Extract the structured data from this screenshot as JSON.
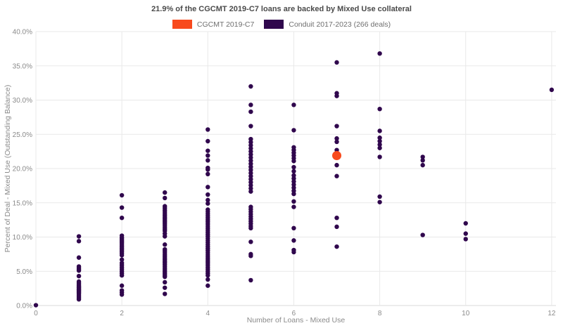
{
  "title": "21.9% of the CGCMT 2019-C7 loans are backed by Mixed Use collateral",
  "legend": {
    "items": [
      {
        "label": "CGCMT 2019-C7",
        "color": "#f84a1d"
      },
      {
        "label": "Conduit 2017-2023 (266 deals)",
        "color": "#30074d"
      }
    ]
  },
  "colors": {
    "gridline": "#e9e9e9",
    "axis_line": "#d9d9d9",
    "tick_text": "#8a8a8a",
    "axis_title_text": "#8a8a8a"
  },
  "chart_data": {
    "type": "scatter",
    "title": "21.9% of the CGCMT 2019-C7 loans are backed by Mixed Use collateral",
    "xlabel": "Number of Loans - Mixed Use",
    "ylabel": "Percent of Deal - Mixed Use (Outstanding Balance)",
    "xlim": [
      0,
      12.1
    ],
    "ylim": [
      0,
      40
    ],
    "grid": true,
    "legend_position": "top",
    "x_ticks": [
      {
        "v": 0,
        "label": "0"
      },
      {
        "v": 2,
        "label": "2"
      },
      {
        "v": 4,
        "label": "4"
      },
      {
        "v": 6,
        "label": "6"
      },
      {
        "v": 8,
        "label": "8"
      },
      {
        "v": 10,
        "label": "10"
      },
      {
        "v": 12,
        "label": "12"
      }
    ],
    "y_ticks": [
      {
        "v": 0,
        "label": "0.0%"
      },
      {
        "v": 5,
        "label": "5.0%"
      },
      {
        "v": 10,
        "label": "10.0%"
      },
      {
        "v": 15,
        "label": "15.0%"
      },
      {
        "v": 20,
        "label": "20.0%"
      },
      {
        "v": 25,
        "label": "25.0%"
      },
      {
        "v": 30,
        "label": "30.0%"
      },
      {
        "v": 35,
        "label": "35.0%"
      },
      {
        "v": 40,
        "label": "40.0%"
      }
    ],
    "series": [
      {
        "name": "Conduit 2017-2023 (266 deals)",
        "color": "#30074d",
        "marker_radius": 3.2,
        "points": [
          [
            0,
            0.05
          ],
          [
            1,
            10.1
          ],
          [
            1,
            9.4
          ],
          [
            1,
            7.0
          ],
          [
            1,
            5.7
          ],
          [
            1,
            5.5
          ],
          [
            1,
            5.3
          ],
          [
            1,
            5.1
          ],
          [
            1,
            4.3
          ],
          [
            1,
            3.5
          ],
          [
            1,
            3.3
          ],
          [
            1,
            3.1
          ],
          [
            1,
            2.9
          ],
          [
            1,
            2.75
          ],
          [
            1,
            2.6
          ],
          [
            1,
            2.45
          ],
          [
            1,
            2.3
          ],
          [
            1,
            2.15
          ],
          [
            1,
            2.0
          ],
          [
            1,
            1.85
          ],
          [
            1,
            1.7
          ],
          [
            1,
            1.5
          ],
          [
            1,
            1.3
          ],
          [
            1,
            1.1
          ],
          [
            1,
            0.9
          ],
          [
            2,
            16.1
          ],
          [
            2,
            14.3
          ],
          [
            2,
            12.8
          ],
          [
            2,
            10.2
          ],
          [
            2,
            9.9
          ],
          [
            2,
            9.7
          ],
          [
            2,
            9.5
          ],
          [
            2,
            9.3
          ],
          [
            2,
            9.1
          ],
          [
            2,
            8.85
          ],
          [
            2,
            8.6
          ],
          [
            2,
            8.35
          ],
          [
            2,
            8.1
          ],
          [
            2,
            7.85
          ],
          [
            2,
            7.6
          ],
          [
            2,
            7.35
          ],
          [
            2,
            6.7
          ],
          [
            2,
            6.2
          ],
          [
            2,
            5.9
          ],
          [
            2,
            5.6
          ],
          [
            2,
            5.3
          ],
          [
            2,
            5.0
          ],
          [
            2,
            4.7
          ],
          [
            2,
            4.4
          ],
          [
            2,
            2.9
          ],
          [
            2,
            2.2
          ],
          [
            2,
            1.9
          ],
          [
            2,
            1.6
          ],
          [
            3,
            16.5
          ],
          [
            3,
            15.7
          ],
          [
            3,
            14.5
          ],
          [
            3,
            14.2
          ],
          [
            3,
            13.9
          ],
          [
            3,
            13.65
          ],
          [
            3,
            13.4
          ],
          [
            3,
            13.15
          ],
          [
            3,
            12.9
          ],
          [
            3,
            12.65
          ],
          [
            3,
            12.4
          ],
          [
            3,
            12.15
          ],
          [
            3,
            11.9
          ],
          [
            3,
            11.65
          ],
          [
            3,
            11.4
          ],
          [
            3,
            11.15
          ],
          [
            3,
            10.9
          ],
          [
            3,
            10.5
          ],
          [
            3,
            10.1
          ],
          [
            3,
            8.9
          ],
          [
            3,
            8.2
          ],
          [
            3,
            7.95
          ],
          [
            3,
            7.7
          ],
          [
            3,
            7.45
          ],
          [
            3,
            7.2
          ],
          [
            3,
            6.95
          ],
          [
            3,
            6.7
          ],
          [
            3,
            6.45
          ],
          [
            3,
            6.2
          ],
          [
            3,
            5.95
          ],
          [
            3,
            5.7
          ],
          [
            3,
            5.45
          ],
          [
            3,
            5.2
          ],
          [
            3,
            4.95
          ],
          [
            3,
            4.7
          ],
          [
            3,
            4.45
          ],
          [
            3,
            4.2
          ],
          [
            3,
            3.4
          ],
          [
            3,
            2.6
          ],
          [
            3,
            1.7
          ],
          [
            4,
            25.7
          ],
          [
            4,
            24.0
          ],
          [
            4,
            22.6
          ],
          [
            4,
            21.9
          ],
          [
            4,
            21.2
          ],
          [
            4,
            20.1
          ],
          [
            4,
            19.85
          ],
          [
            4,
            19.2
          ],
          [
            4,
            17.3
          ],
          [
            4,
            16.2
          ],
          [
            4,
            15.4
          ],
          [
            4,
            14.9
          ],
          [
            4,
            14.0
          ],
          [
            4,
            13.7
          ],
          [
            4,
            13.4
          ],
          [
            4,
            13.1
          ],
          [
            4,
            12.8
          ],
          [
            4,
            12.5
          ],
          [
            4,
            12.2
          ],
          [
            4,
            11.9
          ],
          [
            4,
            11.6
          ],
          [
            4,
            11.3
          ],
          [
            4,
            11.0
          ],
          [
            4,
            10.7
          ],
          [
            4,
            10.4
          ],
          [
            4,
            10.1
          ],
          [
            4,
            9.8
          ],
          [
            4,
            9.5
          ],
          [
            4,
            9.2
          ],
          [
            4,
            8.9
          ],
          [
            4,
            8.6
          ],
          [
            4,
            8.3
          ],
          [
            4,
            8.0
          ],
          [
            4,
            7.7
          ],
          [
            4,
            7.4
          ],
          [
            4,
            7.1
          ],
          [
            4,
            6.8
          ],
          [
            4,
            6.5
          ],
          [
            4,
            6.2
          ],
          [
            4,
            5.9
          ],
          [
            4,
            5.6
          ],
          [
            4,
            5.3
          ],
          [
            4,
            5.0
          ],
          [
            4,
            4.7
          ],
          [
            4,
            4.4
          ],
          [
            4,
            3.8
          ],
          [
            4,
            2.9
          ],
          [
            5,
            32.0
          ],
          [
            5,
            29.3
          ],
          [
            5,
            28.3
          ],
          [
            5,
            26.2
          ],
          [
            5,
            24.3
          ],
          [
            5,
            23.85
          ],
          [
            5,
            23.4
          ],
          [
            5,
            22.95
          ],
          [
            5,
            22.5
          ],
          [
            5,
            22.05
          ],
          [
            5,
            21.6
          ],
          [
            5,
            21.15
          ],
          [
            5,
            20.7
          ],
          [
            5,
            20.25
          ],
          [
            5,
            19.8
          ],
          [
            5,
            19.35
          ],
          [
            5,
            18.9
          ],
          [
            5,
            18.45
          ],
          [
            5,
            18.0
          ],
          [
            5,
            17.55
          ],
          [
            5,
            17.1
          ],
          [
            5,
            16.65
          ],
          [
            5,
            14.4
          ],
          [
            5,
            14.05
          ],
          [
            5,
            13.7
          ],
          [
            5,
            13.35
          ],
          [
            5,
            13.0
          ],
          [
            5,
            12.65
          ],
          [
            5,
            12.3
          ],
          [
            5,
            11.95
          ],
          [
            5,
            11.6
          ],
          [
            5,
            11.3
          ],
          [
            5,
            9.3
          ],
          [
            5,
            7.5
          ],
          [
            5,
            7.25
          ],
          [
            5,
            3.7
          ],
          [
            6,
            29.3
          ],
          [
            6,
            25.6
          ],
          [
            6,
            23.1
          ],
          [
            6,
            22.7
          ],
          [
            6,
            22.3
          ],
          [
            6,
            21.9
          ],
          [
            6,
            21.5
          ],
          [
            6,
            21.1
          ],
          [
            6,
            20.2
          ],
          [
            6,
            19.6
          ],
          [
            6,
            19.0
          ],
          [
            6,
            18.55
          ],
          [
            6,
            18.1
          ],
          [
            6,
            17.65
          ],
          [
            6,
            17.2
          ],
          [
            6,
            16.75
          ],
          [
            6,
            16.3
          ],
          [
            6,
            15.2
          ],
          [
            6,
            14.4
          ],
          [
            6,
            11.3
          ],
          [
            6,
            9.5
          ],
          [
            6,
            8.1
          ],
          [
            6,
            7.8
          ],
          [
            7,
            35.5
          ],
          [
            7,
            31.0
          ],
          [
            7,
            30.6
          ],
          [
            7,
            26.2
          ],
          [
            7,
            24.4
          ],
          [
            7,
            23.9
          ],
          [
            7,
            22.7
          ],
          [
            7,
            20.5
          ],
          [
            7,
            18.9
          ],
          [
            7,
            12.8
          ],
          [
            7,
            11.5
          ],
          [
            7,
            8.6
          ],
          [
            8,
            36.8
          ],
          [
            8,
            28.7
          ],
          [
            8,
            25.5
          ],
          [
            8,
            24.5
          ],
          [
            8,
            24.0
          ],
          [
            8,
            23.5
          ],
          [
            8,
            23.0
          ],
          [
            8,
            21.7
          ],
          [
            8,
            15.9
          ],
          [
            8,
            15.1
          ],
          [
            9,
            21.7
          ],
          [
            9,
            21.2
          ],
          [
            9,
            20.5
          ],
          [
            9,
            10.3
          ],
          [
            10,
            12.0
          ],
          [
            10,
            10.5
          ],
          [
            10,
            9.7
          ],
          [
            12,
            31.5
          ]
        ]
      },
      {
        "name": "CGCMT 2019-C7",
        "color": "#f84a1d",
        "marker_radius": 6.5,
        "points": [
          [
            7,
            21.9
          ]
        ]
      }
    ]
  }
}
